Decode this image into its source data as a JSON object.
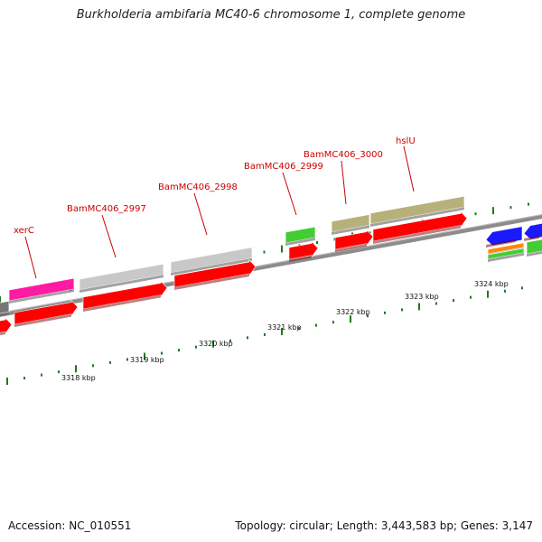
{
  "title": "Burkholderia ambifaria MC40-6 chromosome 1, complete genome",
  "footer": {
    "accession": "Accession: NC_010551",
    "summary": "Topology: circular; Length: 3,443,583 bp; Genes: 3,147"
  },
  "scale_labels": [
    "3318 kbp",
    "3319 kbp",
    "3320 kbp",
    "3321 kbp",
    "3322 kbp",
    "3323 kbp",
    "3324 kbp"
  ],
  "gene_labels": [
    "xerC",
    "BamMC406_2997",
    "BamMC406_2998",
    "BamMC406_2999",
    "BamMC406_3000",
    "hslU"
  ],
  "colors": {
    "backbone": "#8c8c8c",
    "cds_red": "#ff0000",
    "gene_gray": "#c8c8c8",
    "gene_pink": "#ff1aa3",
    "gene_green": "#44cc33",
    "gene_olive": "#b8b07a",
    "gene_blue": "#1a1aff",
    "gene_orange": "#ff8800",
    "tick_green": "#1e7a1e",
    "label_red": "#cc0000"
  }
}
